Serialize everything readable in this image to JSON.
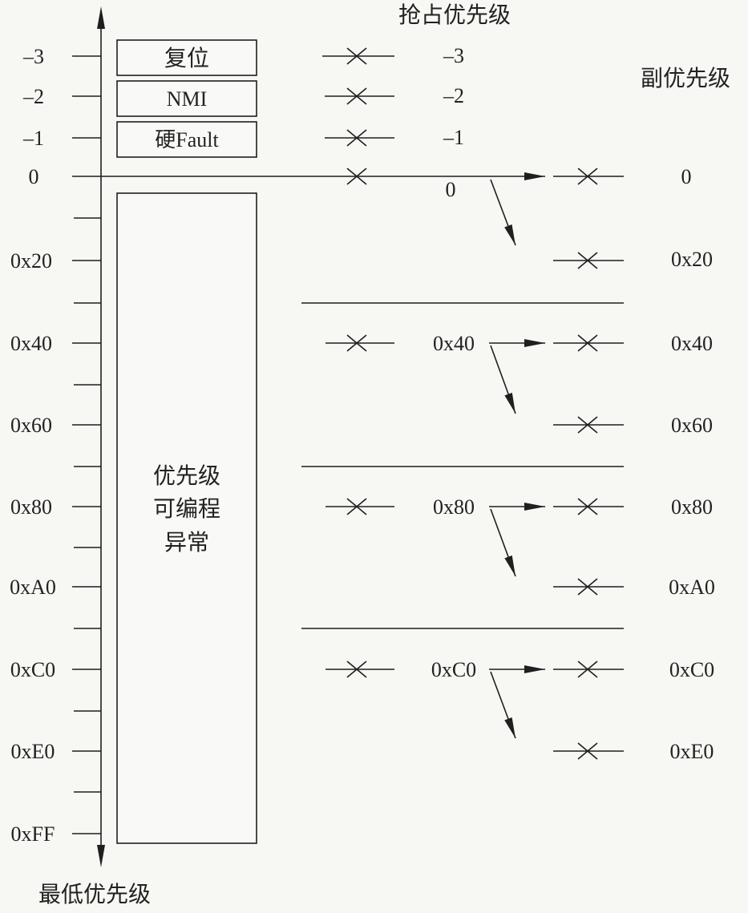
{
  "header": {
    "preemption_title": "抢占优先级",
    "subpriority_title": "副优先级"
  },
  "axis": {
    "bottom_label": "最低优先级",
    "labels": [
      "–3",
      "–2",
      "–1",
      "0",
      "0x20",
      "0x40",
      "0x60",
      "0x80",
      "0xA0",
      "0xC0",
      "0xE0",
      "0xFF"
    ]
  },
  "boxes": {
    "reset": "复位",
    "nmi": "NMI",
    "hard_fault": "硬Fault",
    "programmable": [
      "优先级",
      "可编程",
      "异常"
    ]
  },
  "preemption": {
    "labels": [
      "–3",
      "–2",
      "–1",
      "0",
      "0x40",
      "0x80",
      "0xC0"
    ]
  },
  "subpriority": {
    "labels": [
      "0",
      "0x20",
      "0x40",
      "0x60",
      "0x80",
      "0xA0",
      "0xC0",
      "0xE0"
    ]
  }
}
